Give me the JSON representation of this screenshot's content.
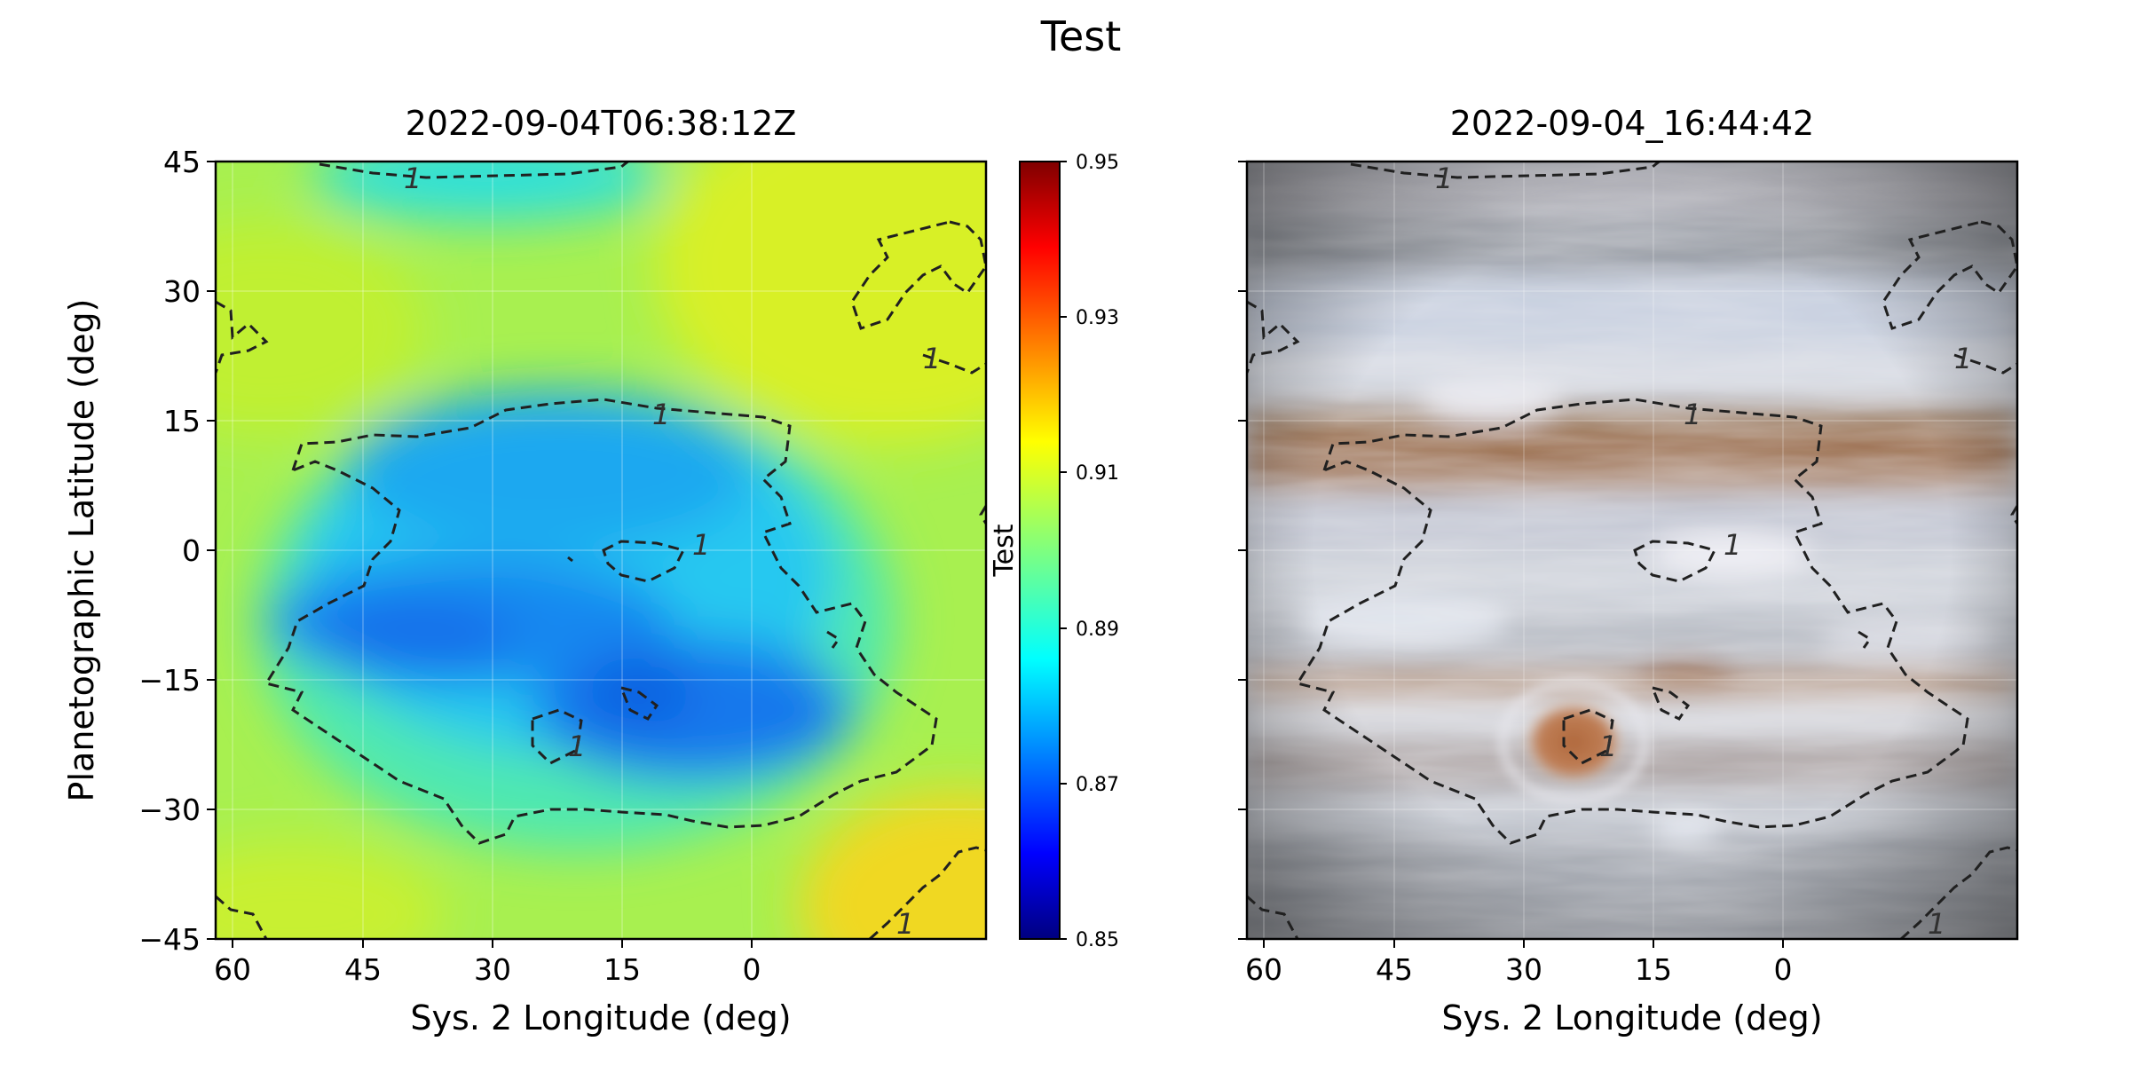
{
  "figure": {
    "suptitle": "Test"
  },
  "chart_data": [
    {
      "type": "heatmap",
      "title": "2022-09-04T06:38:12Z",
      "xlabel": "Sys. 2 Longitude (deg)",
      "ylabel": "Planetographic Latitude (deg)",
      "xlim": [
        63,
        -18
      ],
      "ylim": [
        -45,
        45
      ],
      "xticks": [
        60,
        45,
        30,
        15,
        0
      ],
      "yticks": [
        45,
        30,
        15,
        0,
        -15,
        -30,
        -45
      ],
      "ytick_labels": [
        "45",
        "30",
        "15",
        "0",
        "−15",
        "−30",
        "−45"
      ],
      "grid": true,
      "colormap": "jet",
      "colorbar": {
        "label": "Test",
        "range": [
          0.85,
          0.95
        ],
        "ticks": [
          "0.95",
          "0.93",
          "0.91",
          "0.89",
          "0.87",
          "0.85"
        ]
      },
      "contour": {
        "level": 1,
        "label": "1",
        "style": "dashed",
        "color": "#222222"
      },
      "value_range_shown": [
        0.86,
        0.93
      ]
    },
    {
      "type": "heatmap",
      "title": "2022-09-04_16:44:42",
      "xlabel": "Sys. 2 Longitude (deg)",
      "xlim": [
        63,
        -18
      ],
      "ylim": [
        -45,
        45
      ],
      "xticks": [
        60,
        45,
        30,
        15,
        0
      ],
      "grid": true,
      "image": "planet-true-color-map",
      "contour": {
        "level": 1,
        "label": "1",
        "style": "dashed",
        "color": "#222222"
      }
    }
  ]
}
